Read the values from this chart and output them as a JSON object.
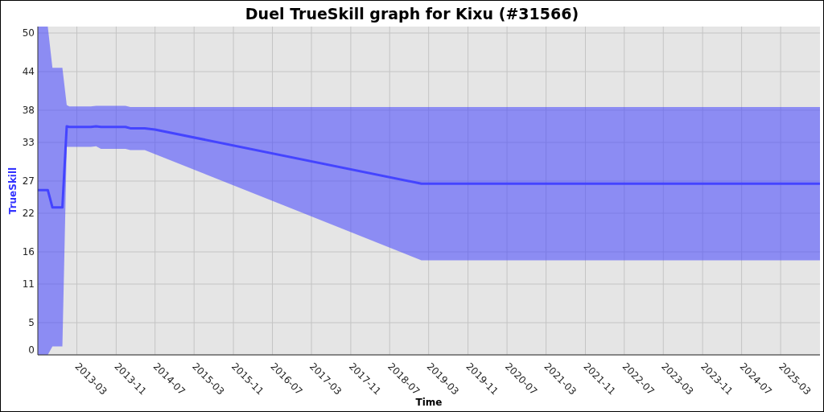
{
  "chart_data": {
    "type": "line",
    "title": "Duel TrueSkill graph for Kixu (#31566)",
    "xlabel": "Time",
    "ylabel": "TrueSkill",
    "xlim": [
      "2012-07-01",
      "2025-11-01"
    ],
    "xticks": [
      "2013-03",
      "2013-11",
      "2014-07",
      "2015-03",
      "2015-11",
      "2016-07",
      "2017-03",
      "2017-11",
      "2018-07",
      "2019-03",
      "2019-11",
      "2020-07",
      "2021-03",
      "2021-11",
      "2022-07",
      "2023-03",
      "2023-11",
      "2024-07",
      "2025-03"
    ],
    "ylim": [
      0,
      51
    ],
    "yticks": [
      0,
      5,
      11,
      16,
      22,
      27,
      33,
      38,
      44,
      50
    ],
    "grid": true,
    "marker": "none",
    "line_style": "solid",
    "series": [
      {
        "color": "#4444ff",
        "x": [
          "2012-07-01",
          "2012-09-01",
          "2012-09-30",
          "2012-12-01",
          "2012-12-28",
          "2013-01-13",
          "2013-05-27",
          "2013-06-29",
          "2013-07-29",
          "2013-12-29",
          "2014-01-28",
          "2014-04-28",
          "2014-06-30",
          "2019-01-15",
          "2025-11-01"
        ],
        "values": [
          25.6,
          25.6,
          22.9,
          22.9,
          35.5,
          35.4,
          35.4,
          35.5,
          35.4,
          35.4,
          35.2,
          35.2,
          35.0,
          26.6,
          26.6
        ],
        "lower": [
          0,
          0,
          1.3,
          1.3,
          32.3,
          32.3,
          32.3,
          32.4,
          32.0,
          32.0,
          31.8,
          31.8,
          31.2,
          14.7,
          14.7
        ],
        "upper": [
          51,
          51,
          44.6,
          44.6,
          38.8,
          38.6,
          38.6,
          38.7,
          38.7,
          38.7,
          38.5,
          38.5,
          38.5,
          38.5,
          38.5
        ]
      }
    ]
  }
}
